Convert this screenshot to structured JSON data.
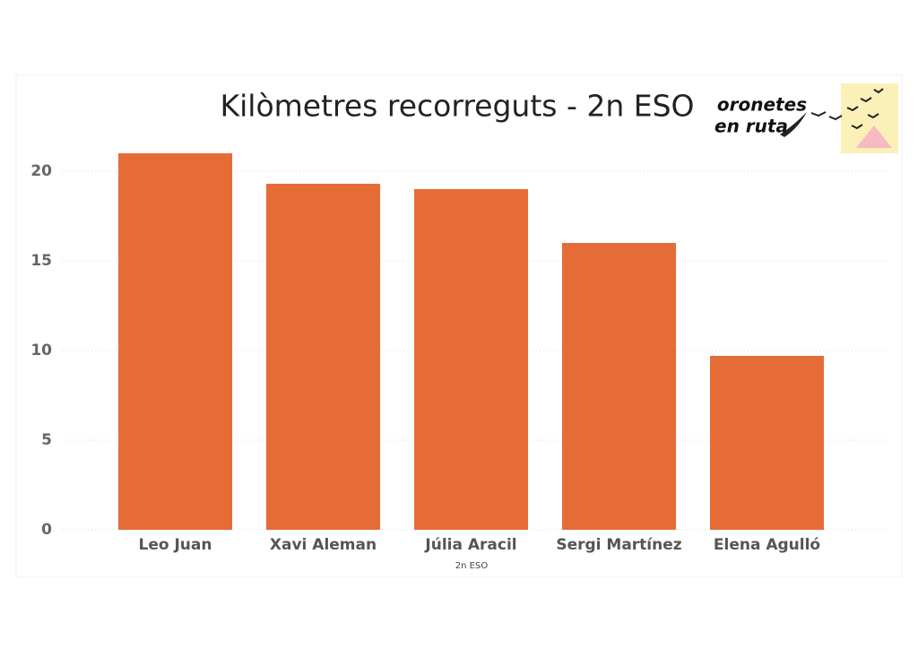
{
  "chart_data": {
    "type": "bar",
    "title": "Kilòmetres recorreguts - 2n ESO",
    "x_label": "2n ESO",
    "logo_text": [
      "oronetes",
      "en ruta"
    ],
    "categories": [
      "Leo Juan",
      "Xavi Aleman",
      "Júlia Aracil",
      "Sergi Martínez",
      "Elena Agulló"
    ],
    "values": [
      21,
      19.3,
      19,
      16,
      9.7
    ],
    "color": "#e66c37",
    "ylim": [
      0,
      22
    ],
    "yticks": [
      0,
      5,
      10,
      15,
      20
    ],
    "grid": true
  }
}
